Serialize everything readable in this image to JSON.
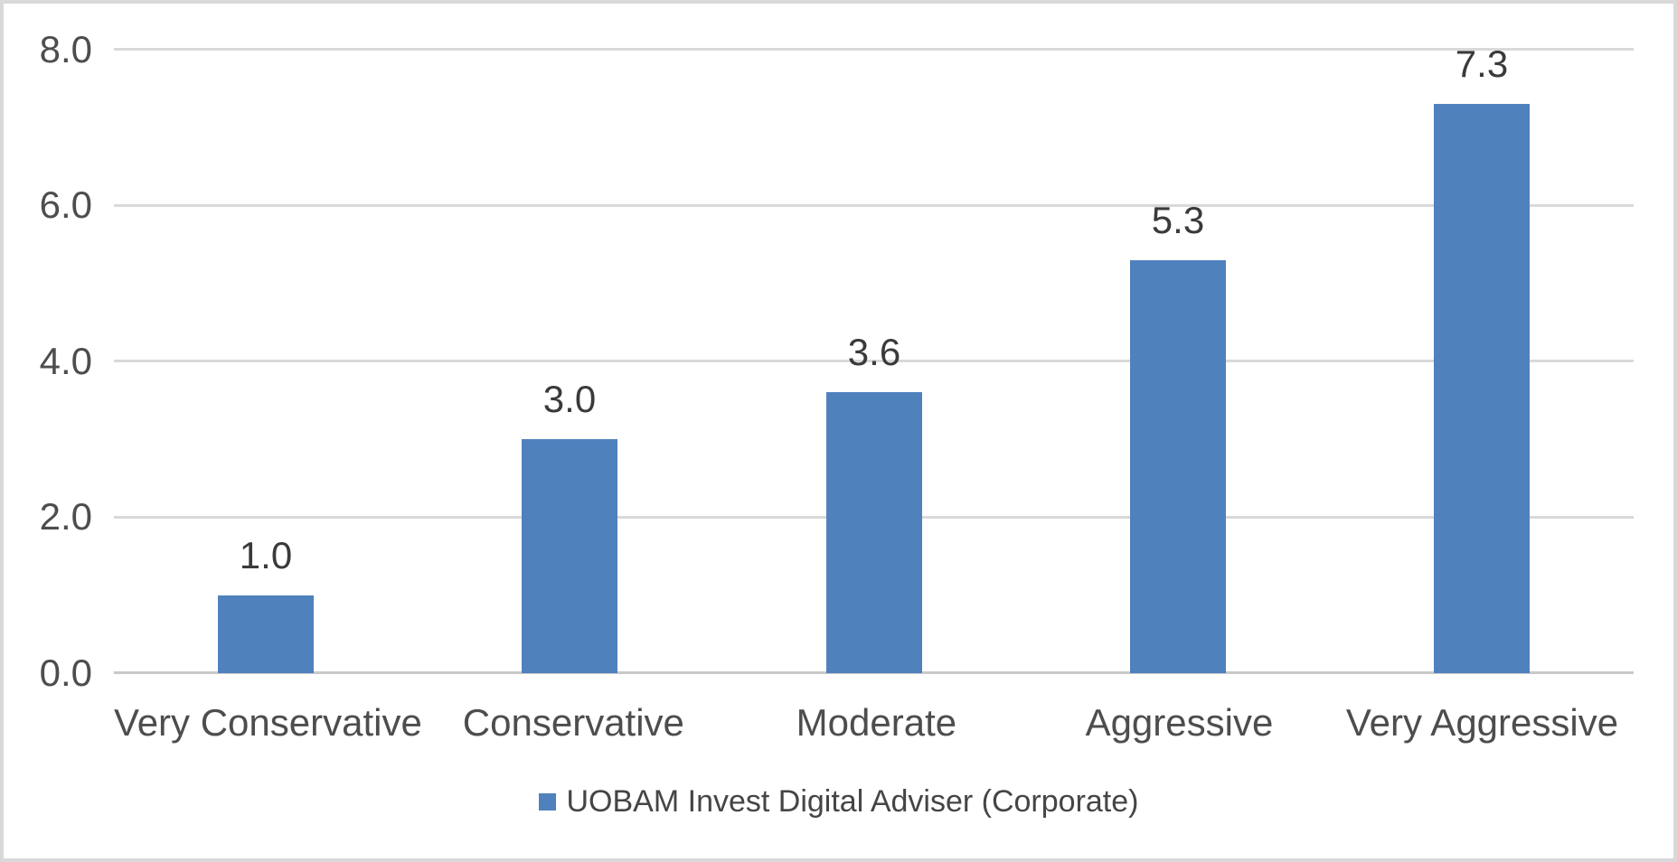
{
  "chart_data": {
    "type": "bar",
    "title": "",
    "xlabel": "",
    "ylabel": "",
    "categories": [
      "Very Conservative",
      "Conservative",
      "Moderate",
      "Aggressive",
      "Very Aggressive"
    ],
    "series": [
      {
        "name": "UOBAM Invest Digital Adviser (Corporate)",
        "values": [
          1.0,
          3.0,
          3.6,
          5.3,
          7.3
        ],
        "value_labels": [
          "1.0",
          "3.0",
          "3.6",
          "5.3",
          "7.3"
        ],
        "color": "#4f81bd"
      }
    ],
    "ylim": [
      0,
      8
    ],
    "yticks": [
      {
        "value": 0,
        "label": "0.0"
      },
      {
        "value": 2,
        "label": "2.0"
      },
      {
        "value": 4,
        "label": "4.0"
      },
      {
        "value": 6,
        "label": "6.0"
      },
      {
        "value": 8,
        "label": "8.0"
      }
    ],
    "grid": true,
    "data_labels": true,
    "legend_position": "bottom"
  },
  "colors": {
    "bar": "#4f81bd",
    "gridline": "#d9d9d9",
    "axis_line": "#c9c9c9",
    "tick_text": "#4d4d4d",
    "data_label_text": "#3a3a3a",
    "legend_text": "#454545",
    "border": "#d9d9d9",
    "background": "#ffffff"
  }
}
